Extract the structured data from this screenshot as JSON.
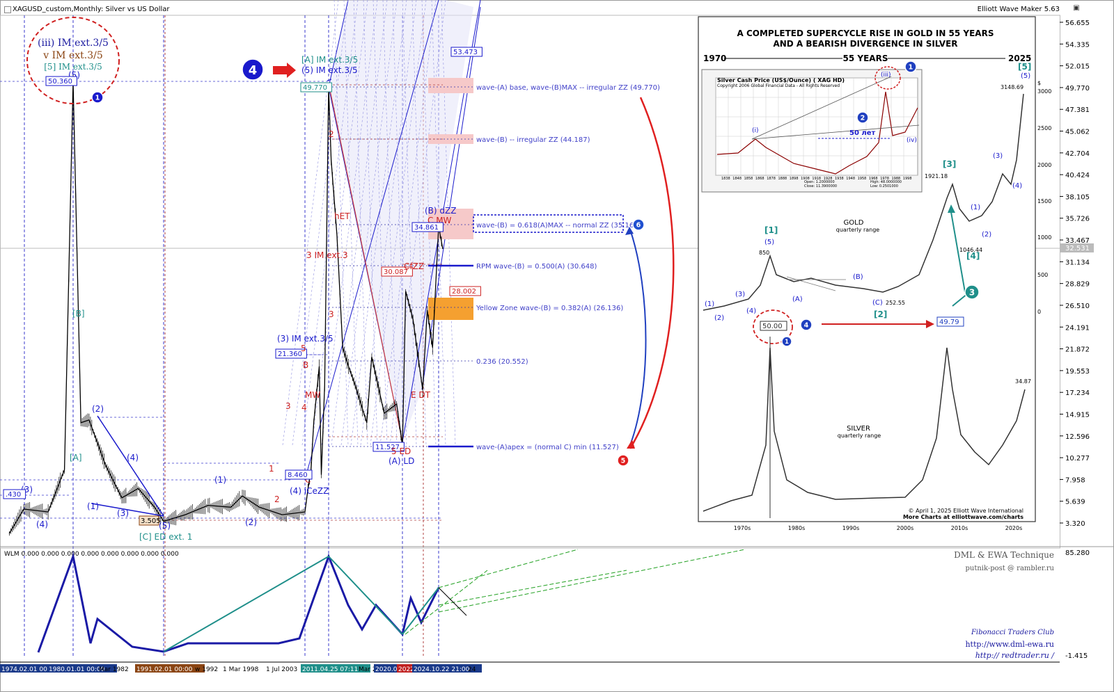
{
  "header": {
    "symbol_title": "XAGUSD_custom,Monthly:  Silver vs US Dollar",
    "app_name": "Elliott Wave Maker 5.63"
  },
  "top_circle": {
    "line1": "(iii) IM ext.3/5",
    "line2": "v IM ext.3/5",
    "line3": "[5] IM ext.3/5"
  },
  "price_axis": [
    "56.655",
    "54.335",
    "52.015",
    "49.770",
    "47.381",
    "45.062",
    "42.704",
    "40.424",
    "38.105",
    "35.726",
    "33.467",
    "31.134",
    "28.829",
    "26.510",
    "24.191",
    "21.872",
    "19.553",
    "17.234",
    "14.915",
    "12.596",
    "10.277",
    "7.958",
    "5.639",
    "3.320"
  ],
  "current_price": "32.531",
  "time_axis": [
    "1974.02.01 00",
    "1980.01.01 00:00",
    "Mar 1982",
    "1991.02.01 00:00",
    "w 1992",
    "1 Mar 1998",
    "1 Jul 2003",
    "2011.04.25 07:11",
    "Mar 2",
    "2020.0",
    "2022",
    "2024.10.22 21:00",
    "24"
  ],
  "colors": {
    "accent_blue": "#1a1acc",
    "wave_red": "#cc2020",
    "teal": "#1f8f8a",
    "fib_fill": "#f6c9c9",
    "yellow_zone": "#f5a030",
    "channel_fill": "#e4e4f8"
  },
  "wave_labels": [
    {
      "text": "(5)"
    },
    {
      "text": "50.360"
    },
    {
      "text": "[B]"
    },
    {
      "text": "[A]"
    },
    {
      "text": "(1)"
    },
    {
      "text": "(2)"
    },
    {
      "text": "(3)"
    },
    {
      "text": "(4)"
    },
    {
      "text": "(5)"
    },
    {
      "text": "(4)"
    },
    {
      "text": "(3)"
    },
    {
      "text": ".430"
    },
    {
      "text": "3.505"
    },
    {
      "text": "[C] ED ext. 1"
    },
    {
      "text": "(1)"
    },
    {
      "text": "(2)"
    },
    {
      "text": "(3) IM ext.3/5"
    },
    {
      "text": "21.360"
    },
    {
      "text": "5"
    },
    {
      "text": "B"
    },
    {
      "text": "MW"
    },
    {
      "text": "3"
    },
    {
      "text": "1"
    },
    {
      "text": "2"
    },
    {
      "text": "4"
    },
    {
      "text": "C"
    },
    {
      "text": "8.460"
    },
    {
      "text": "(4) iCeZZ"
    },
    {
      "text": "[A] IM ext.3/5"
    },
    {
      "text": "(5) IM ext.3/5"
    },
    {
      "text": "49.770"
    },
    {
      "text": "2"
    },
    {
      "text": "hET"
    },
    {
      "text": "3 IM ext.3"
    },
    {
      "text": "3"
    },
    {
      "text": "30.087"
    },
    {
      "text": "CfZZ"
    },
    {
      "text": "11.527"
    },
    {
      "text": "5 ED"
    },
    {
      "text": "(A) LD"
    },
    {
      "text": "E DT"
    },
    {
      "text": "(B) dZZ"
    },
    {
      "text": "C MW"
    },
    {
      "text": "34.861"
    },
    {
      "text": "53.473"
    },
    {
      "text": "28.002"
    }
  ],
  "fib_levels": [
    {
      "label": "wave-(A) base, wave-(B)MAX -- irregular ZZ (49.770)"
    },
    {
      "label": "wave-(B) -- irregular ZZ (44.187)"
    },
    {
      "label": "wave-(B) = 0.618(A)MAX -- normal ZZ (35.161)"
    },
    {
      "label": "RPM wave-(B) = 0.500(A) (30.648)"
    },
    {
      "label": "Yellow Zone wave-(B) = 0.382(A) (26.136)"
    },
    {
      "label": "0.236 (20.552)"
    },
    {
      "label": "wave-(A)apex = (normal C) min (11.527)"
    }
  ],
  "markers": [
    "1",
    "4",
    "5",
    "6"
  ],
  "inset": {
    "title_line1": "A COMPLETED SUPERCYCLE RISE IN GOLD IN 55 YEARS",
    "title_line2": "AND A BEARISH DIVERGENCE IN SILVER",
    "year_start": "1970",
    "span": "55 YEARS",
    "year_end": "2025",
    "sub_title": "Silver Cash Price (US$/Ounce) (   XAG  HD)",
    "sub_copyright": "Copyright 2006 Global Financial Data - All Rights Reserved",
    "sub_open": "Open:     1.2000000",
    "sub_close": "Close:  11.3900000",
    "sub_high": "High:   48.0000000",
    "sub_low": "Low:    0.2501000",
    "sub_50": "50 лет",
    "sub_years": [
      "1838",
      "1848",
      "1858",
      "1868",
      "1878",
      "1888",
      "1898",
      "1908",
      "1918",
      "1928",
      "1938",
      "1948",
      "1958",
      "1968",
      "1978",
      "1988",
      "1998"
    ],
    "sub_waves": [
      "(i)",
      "(iii)",
      "(iv)"
    ],
    "gold_label": "GOLD",
    "gold_sub": "quarterly range",
    "silver_label": "SILVER",
    "silver_sub": "quarterly range",
    "gold_values": [
      "850",
      "252.55",
      "1921.18",
      "1046.44",
      "3148.69"
    ],
    "silver_values": [
      "50.00",
      "49.79",
      "34.87"
    ],
    "gold_waves": [
      "[1]",
      "(5)",
      "(1)",
      "(2)",
      "(3)",
      "(4)",
      "(A)",
      "(B)",
      "(C)",
      "[2]",
      "[3]",
      "[4]",
      "[5]",
      "(5)",
      "(1)",
      "(2)",
      "(3)",
      "(4)"
    ],
    "right_axis": [
      "$",
      "3000",
      "2500",
      "2000",
      "1500",
      "1000",
      "500",
      "0"
    ],
    "decades": [
      "1970s",
      "1980s",
      "1990s",
      "2000s",
      "2010s",
      "2020s"
    ],
    "footer1": "© April 1, 2025 Elliott Wave International",
    "footer2": "More Charts at elliottwave.com/charts",
    "markers": [
      "1",
      "2",
      "3",
      "4"
    ]
  },
  "indicator": {
    "header": "WLM 0.000 0.000 0.000 0.000 0.000 0.000 0.000 0.000",
    "axis": [
      "85.280",
      "-1.415"
    ],
    "brand1": "DML & EWA Technique",
    "brand2": "putnik-post @ rambler.ru",
    "brand3": "Fibonacci   Traders   Club",
    "brand4": "http://www.dml-ewa.ru",
    "brand5": "http:// redtrader.ru /"
  },
  "chart_data": {
    "type": "line",
    "title": "XAGUSD_custom,Monthly:  Silver vs US Dollar",
    "xlabel": "",
    "ylabel": "",
    "ylim": [
      1.5,
      58
    ],
    "x_years": [
      1971.5,
      1974,
      1977,
      1979,
      1980.05,
      1981,
      1982,
      1984,
      1986,
      1988,
      1990,
      1991.1,
      1993,
      1995,
      1997,
      1998,
      1999.5,
      2001.5,
      2003.5,
      2004.5,
      2005.5,
      2006.4,
      2008.2,
      2008.9,
      2010,
      2011.3,
      2011.6,
      2012.3,
      2013,
      2013.7,
      2014.5,
      2015.9,
      2016.5,
      2018,
      2019.5,
      2020.2,
      2020.6,
      2021.5,
      2022.7,
      2023.3,
      2024,
      2024.8,
      2025.2
    ],
    "y_values": [
      2.2,
      4.8,
      4.5,
      9,
      50.36,
      14,
      14.3,
      9.5,
      6,
      7,
      5,
      3.5,
      4.2,
      5.2,
      5,
      6.2,
      5,
      4.2,
      4.5,
      7,
      9,
      14,
      20,
      8.46,
      18,
      49.77,
      42,
      34,
      22,
      20,
      18,
      14,
      21,
      15,
      16,
      11.53,
      28,
      25,
      17.5,
      26,
      22,
      34.86,
      32.5
    ],
    "fib_levels": [
      49.77,
      44.187,
      35.161,
      30.648,
      26.136,
      20.552,
      11.527
    ],
    "price_ticks": [
      56.655,
      54.335,
      52.015,
      49.77,
      47.381,
      45.062,
      42.704,
      40.424,
      38.105,
      35.726,
      33.467,
      31.134,
      28.829,
      26.51,
      24.191,
      21.872,
      19.553,
      17.234,
      14.915,
      12.596,
      10.277,
      7.958,
      5.639,
      3.32
    ]
  }
}
